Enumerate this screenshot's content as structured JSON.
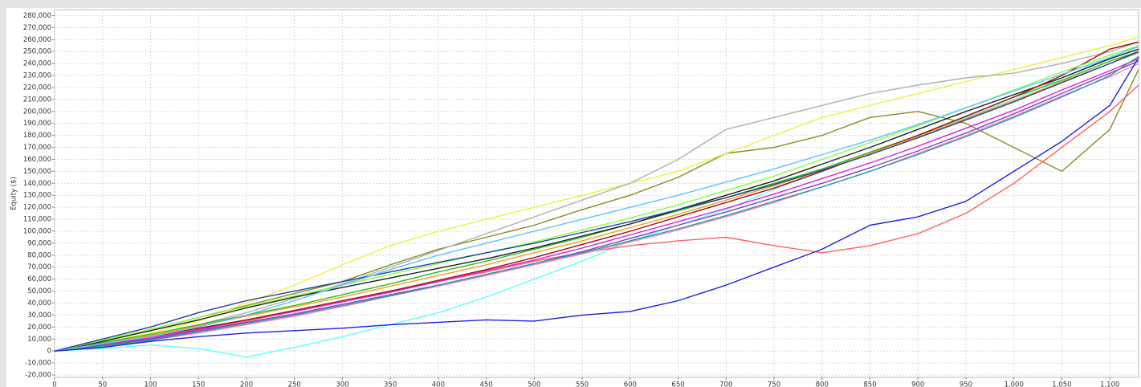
{
  "chart_data": {
    "type": "line",
    "ylabel": "Equity ($)",
    "x": [
      0,
      50,
      100,
      150,
      200,
      250,
      300,
      350,
      400,
      450,
      500,
      550,
      600,
      650,
      700,
      750,
      800,
      850,
      900,
      950,
      1000,
      1050,
      1100,
      1130
    ],
    "xlim": [
      0,
      1130
    ],
    "xticks": [
      0,
      50,
      100,
      150,
      200,
      250,
      300,
      350,
      400,
      450,
      500,
      550,
      600,
      650,
      700,
      750,
      800,
      850,
      900,
      950,
      {
        "value": 1000,
        "label": "1,000"
      },
      {
        "value": 1050,
        "label": "1,050"
      },
      {
        "value": 1100,
        "label": "1,100"
      }
    ],
    "ylim": [
      -22000,
      285000
    ],
    "yticks": [
      {
        "value": -20000,
        "label": "-20,000"
      },
      {
        "value": -10000,
        "label": "-10,000"
      },
      0,
      {
        "value": 10000,
        "label": "10,000"
      },
      {
        "value": 20000,
        "label": "20,000"
      },
      {
        "value": 30000,
        "label": "30,000"
      },
      {
        "value": 40000,
        "label": "40,000"
      },
      {
        "value": 50000,
        "label": "50,000"
      },
      {
        "value": 60000,
        "label": "60,000"
      },
      {
        "value": 70000,
        "label": "70,000"
      },
      {
        "value": 80000,
        "label": "80,000"
      },
      {
        "value": 90000,
        "label": "90,000"
      },
      {
        "value": 100000,
        "label": "100,000"
      },
      {
        "value": 110000,
        "label": "110,000"
      },
      {
        "value": 120000,
        "label": "120,000"
      },
      {
        "value": 130000,
        "label": "130,000"
      },
      {
        "value": 140000,
        "label": "140,000"
      },
      {
        "value": 150000,
        "label": "150,000"
      },
      {
        "value": 160000,
        "label": "160,000"
      },
      {
        "value": 170000,
        "label": "170,000"
      },
      {
        "value": 180000,
        "label": "180,000"
      },
      {
        "value": 190000,
        "label": "190,000"
      },
      {
        "value": 200000,
        "label": "200,000"
      },
      {
        "value": 210000,
        "label": "210,000"
      },
      {
        "value": 220000,
        "label": "220,000"
      },
      {
        "value": 230000,
        "label": "230,000"
      },
      {
        "value": 240000,
        "label": "240,000"
      },
      {
        "value": 250000,
        "label": "250,000"
      },
      {
        "value": 260000,
        "label": "260,000"
      },
      {
        "value": 270000,
        "label": "270,000"
      },
      {
        "value": 280000,
        "label": "280,000"
      }
    ],
    "grid": true,
    "series": [
      {
        "color": "#8b8b20",
        "values": [
          0,
          8000,
          18000,
          28000,
          38000,
          48000,
          58000,
          72000,
          85000,
          95000,
          105000,
          118000,
          130000,
          145000,
          165000,
          170000,
          180000,
          195000,
          200000,
          190000,
          170000,
          150000,
          185000,
          235000
        ]
      },
      {
        "color": "#60ffff",
        "values": [
          0,
          2000,
          5000,
          2000,
          -5000,
          3000,
          12000,
          22000,
          32000,
          45000,
          60000,
          75000,
          92000,
          105000,
          118000,
          135000,
          150000,
          165000,
          180000,
          195000,
          210000,
          228000,
          245000,
          255000
        ]
      },
      {
        "color": "#f0f040",
        "values": [
          0,
          7000,
          15000,
          25000,
          40000,
          55000,
          72000,
          88000,
          100000,
          110000,
          120000,
          130000,
          140000,
          150000,
          165000,
          180000,
          195000,
          205000,
          215000,
          225000,
          235000,
          245000,
          255000,
          262000
        ]
      },
      {
        "color": "#b0b0b0",
        "values": [
          0,
          5000,
          12000,
          22000,
          32000,
          44000,
          56000,
          70000,
          84000,
          98000,
          112000,
          126000,
          140000,
          160000,
          185000,
          195000,
          205000,
          215000,
          222000,
          228000,
          232000,
          240000,
          250000,
          258000
        ]
      },
      {
        "color": "#ff6060",
        "values": [
          0,
          4000,
          10000,
          18000,
          25000,
          33000,
          41000,
          50000,
          58000,
          66000,
          75000,
          82000,
          88000,
          92000,
          95000,
          88000,
          82000,
          88000,
          98000,
          115000,
          140000,
          170000,
          200000,
          222000
        ]
      },
      {
        "color": "#20c020",
        "values": [
          0,
          7000,
          14000,
          22000,
          30000,
          38000,
          47000,
          56000,
          66000,
          75000,
          85000,
          95000,
          106000,
          117000,
          128000,
          140000,
          152000,
          166000,
          180000,
          196000,
          212000,
          226000,
          242000,
          250000
        ]
      },
      {
        "color": "#e020e0",
        "values": [
          0,
          5000,
          11000,
          18000,
          26000,
          33000,
          41000,
          49000,
          58000,
          67000,
          76000,
          86000,
          97000,
          108000,
          119000,
          131000,
          144000,
          157000,
          171000,
          186000,
          201000,
          218000,
          234000,
          244000
        ]
      },
      {
        "color": "#202020",
        "values": [
          0,
          8000,
          17000,
          26000,
          36000,
          45000,
          53000,
          61000,
          69000,
          77000,
          86000,
          96000,
          106000,
          118000,
          130000,
          142000,
          156000,
          170000,
          185000,
          200000,
          214000,
          228000,
          244000,
          252000
        ]
      },
      {
        "color": "#a01010",
        "values": [
          0,
          6000,
          12000,
          19000,
          26000,
          34000,
          42000,
          50000,
          59000,
          68000,
          78000,
          89000,
          100000,
          112000,
          124000,
          136000,
          150000,
          165000,
          180000,
          196000,
          212000,
          230000,
          252000,
          258000
        ]
      },
      {
        "color": "#ff80c0",
        "values": [
          0,
          3000,
          9000,
          15000,
          22000,
          29000,
          37000,
          46000,
          54000,
          63000,
          72000,
          81000,
          91000,
          101000,
          112000,
          124000,
          137000,
          150000,
          165000,
          180000,
          196000,
          213000,
          229000,
          240000
        ]
      },
      {
        "color": "#80ff40",
        "values": [
          0,
          9000,
          18000,
          28000,
          37000,
          46000,
          55000,
          64000,
          73000,
          82000,
          91000,
          101000,
          111000,
          122000,
          134000,
          146000,
          160000,
          174000,
          188000,
          203000,
          218000,
          233000,
          247000,
          255000
        ]
      },
      {
        "color": "#8040c0",
        "values": [
          0,
          5000,
          10000,
          17000,
          24000,
          31000,
          39000,
          47000,
          55000,
          64000,
          73000,
          83000,
          94000,
          105000,
          116000,
          128000,
          140000,
          153000,
          167000,
          182000,
          198000,
          215000,
          232000,
          242000
        ]
      },
      {
        "color": "#ff9a20",
        "values": [
          0,
          6000,
          13000,
          21000,
          29000,
          37000,
          45000,
          54000,
          63000,
          72000,
          82000,
          92000,
          103000,
          114000,
          126000,
          138000,
          151000,
          165000,
          179000,
          194000,
          209000,
          225000,
          240000,
          249000
        ]
      },
      {
        "color": "#20a0a0",
        "values": [
          0,
          4000,
          9000,
          16000,
          23000,
          30000,
          38000,
          46000,
          55000,
          64000,
          73000,
          82000,
          92000,
          102000,
          113000,
          125000,
          137000,
          150000,
          164000,
          179000,
          195000,
          212000,
          230000,
          246000
        ]
      },
      {
        "color": "#2040a0",
        "values": [
          0,
          10000,
          20000,
          32000,
          42000,
          50000,
          58000,
          66000,
          74000,
          82000,
          90000,
          99000,
          108000,
          118000,
          128000,
          139000,
          151000,
          164000,
          178000,
          193000,
          208000,
          224000,
          240000,
          250000
        ]
      },
      {
        "color": "#60c0ff",
        "values": [
          0,
          6000,
          12000,
          20000,
          30000,
          42000,
          55000,
          68000,
          80000,
          90000,
          100000,
          110000,
          120000,
          130000,
          141000,
          152000,
          164000,
          176000,
          189000,
          203000,
          217000,
          231000,
          245000,
          254000
        ]
      },
      {
        "color": "#2020e0",
        "values": [
          0,
          3000,
          8000,
          12000,
          15000,
          17000,
          19000,
          22000,
          24000,
          26000,
          25000,
          30000,
          33000,
          42000,
          55000,
          70000,
          85000,
          105000,
          112000,
          125000,
          150000,
          175000,
          205000,
          245000
        ]
      }
    ]
  }
}
